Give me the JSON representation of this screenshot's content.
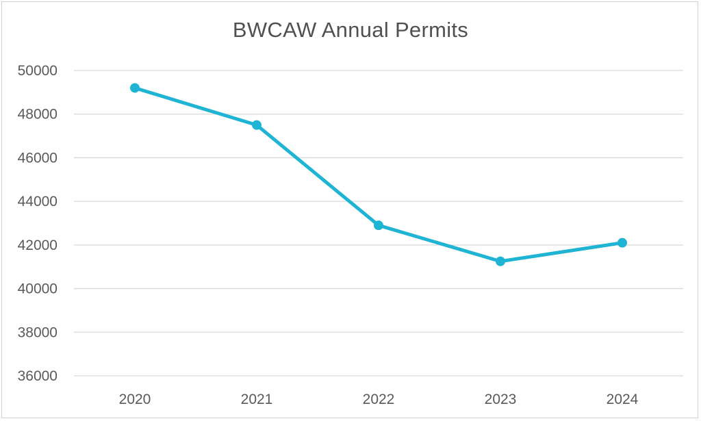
{
  "chart_data": {
    "type": "line",
    "title": "BWCAW Annual Permits",
    "xlabel": "",
    "ylabel": "",
    "categories": [
      "2020",
      "2021",
      "2022",
      "2023",
      "2024"
    ],
    "series": [
      {
        "values": [
          49200,
          47500,
          42900,
          41250,
          42100
        ],
        "color": "#1fb4d3"
      }
    ],
    "ylim": [
      36000,
      50000
    ],
    "yticks": [
      50000,
      48000,
      46000,
      44000,
      42000,
      40000,
      38000,
      36000
    ],
    "grid": true,
    "legend": "none",
    "markers": true
  }
}
